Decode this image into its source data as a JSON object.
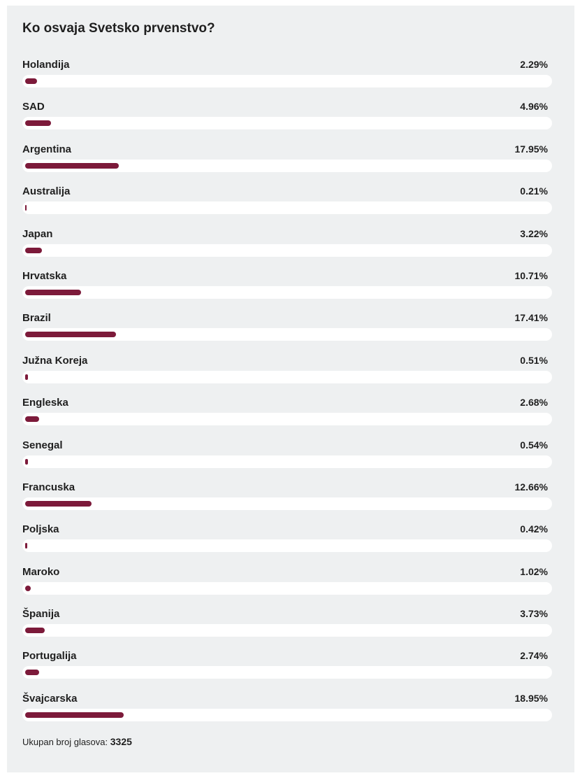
{
  "poll": {
    "title": "Ko osvaja Svetsko prvenstvo?",
    "accent_color": "#7c1a3a",
    "options": [
      {
        "label": "Holandija",
        "percent_text": "2.29%",
        "percent": 2.29
      },
      {
        "label": "SAD",
        "percent_text": "4.96%",
        "percent": 4.96
      },
      {
        "label": "Argentina",
        "percent_text": "17.95%",
        "percent": 17.95
      },
      {
        "label": "Australija",
        "percent_text": "0.21%",
        "percent": 0.21
      },
      {
        "label": "Japan",
        "percent_text": "3.22%",
        "percent": 3.22
      },
      {
        "label": "Hrvatska",
        "percent_text": "10.71%",
        "percent": 10.71
      },
      {
        "label": "Brazil",
        "percent_text": "17.41%",
        "percent": 17.41
      },
      {
        "label": "Južna Koreja",
        "percent_text": "0.51%",
        "percent": 0.51
      },
      {
        "label": "Engleska",
        "percent_text": "2.68%",
        "percent": 2.68
      },
      {
        "label": "Senegal",
        "percent_text": "0.54%",
        "percent": 0.54
      },
      {
        "label": "Francuska",
        "percent_text": "12.66%",
        "percent": 12.66
      },
      {
        "label": "Poljska",
        "percent_text": "0.42%",
        "percent": 0.42
      },
      {
        "label": "Maroko",
        "percent_text": "1.02%",
        "percent": 1.02
      },
      {
        "label": "Španija",
        "percent_text": "3.73%",
        "percent": 3.73
      },
      {
        "label": "Portugalija",
        "percent_text": "2.74%",
        "percent": 2.74
      },
      {
        "label": "Švajcarska",
        "percent_text": "18.95%",
        "percent": 18.95
      }
    ],
    "footer": {
      "label": "Ukupan broj glasova:",
      "total": "3325"
    }
  }
}
